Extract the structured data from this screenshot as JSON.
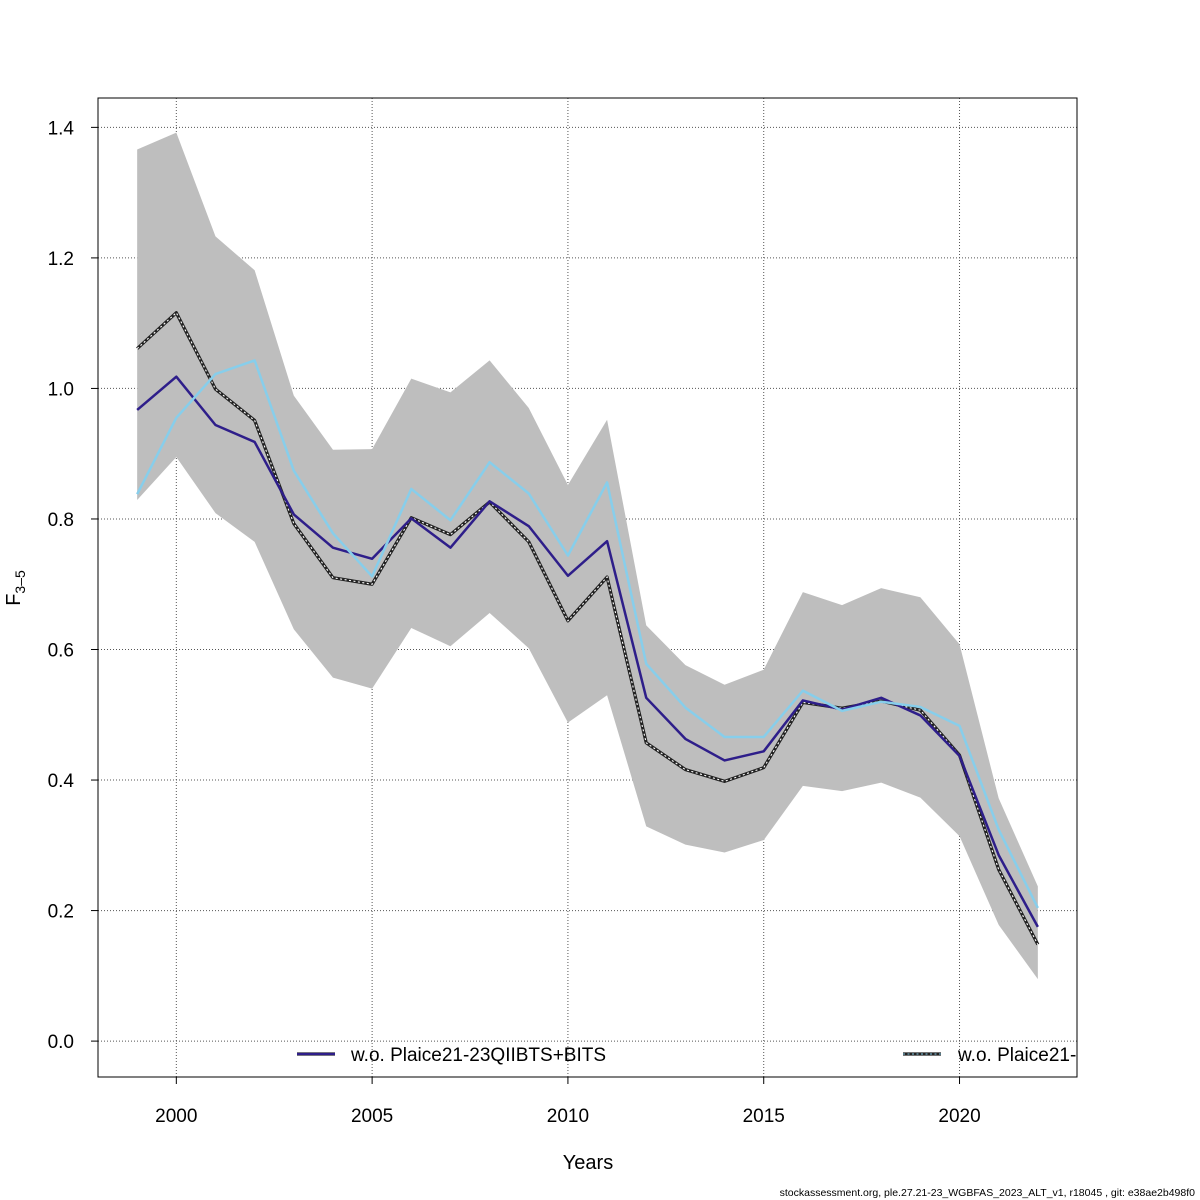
{
  "chart_data": {
    "type": "line",
    "xlabel": "Years",
    "ylabel": "F",
    "ylabel_sub": "3–5",
    "xlim": [
      1998,
      2023
    ],
    "ylim": [
      -0.055,
      1.445
    ],
    "x_ticks": [
      2000,
      2005,
      2010,
      2015,
      2020
    ],
    "y_ticks": [
      0.0,
      0.2,
      0.4,
      0.6,
      0.8,
      1.0,
      1.2,
      1.4
    ],
    "y_tick_labels": [
      "0.0",
      "0.2",
      "0.4",
      "0.6",
      "0.8",
      "1.0",
      "1.2",
      "1.4"
    ],
    "grid": true,
    "x": [
      1999,
      2000,
      2001,
      2002,
      2003,
      2004,
      2005,
      2006,
      2007,
      2008,
      2009,
      2010,
      2011,
      2012,
      2013,
      2014,
      2015,
      2016,
      2017,
      2018,
      2019,
      2020,
      2021,
      2022
    ],
    "band": {
      "upper": [
        1.366,
        1.392,
        1.233,
        1.181,
        0.989,
        0.906,
        0.907,
        1.015,
        0.994,
        1.043,
        0.97,
        0.852,
        0.952,
        0.637,
        0.576,
        0.546,
        0.569,
        0.688,
        0.668,
        0.694,
        0.68,
        0.608,
        0.372,
        0.237
      ],
      "lower": [
        0.829,
        0.895,
        0.809,
        0.765,
        0.631,
        0.557,
        0.54,
        0.633,
        0.605,
        0.656,
        0.602,
        0.488,
        0.53,
        0.329,
        0.301,
        0.289,
        0.308,
        0.391,
        0.383,
        0.396,
        0.373,
        0.314,
        0.178,
        0.095
      ],
      "color": "#bebebe"
    },
    "series": [
      {
        "values": [
          1.061,
          1.116,
          0.999,
          0.951,
          0.793,
          0.71,
          0.7,
          0.802,
          0.776,
          0.826,
          0.765,
          0.644,
          0.711,
          0.457,
          0.416,
          0.398,
          0.419,
          0.519,
          0.51,
          0.521,
          0.507,
          0.438,
          0.263,
          0.148
        ],
        "color": "#222222",
        "dashed": true
      },
      {
        "values": [
          0.967,
          1.018,
          0.944,
          0.918,
          0.807,
          0.756,
          0.739,
          0.801,
          0.756,
          0.827,
          0.789,
          0.713,
          0.766,
          0.526,
          0.463,
          0.43,
          0.444,
          0.522,
          0.508,
          0.526,
          0.499,
          0.437,
          0.285,
          0.175
        ],
        "color": "#2e1e8a",
        "dashed": false
      },
      {
        "values": [
          0.838,
          0.955,
          1.022,
          1.043,
          0.874,
          0.778,
          0.712,
          0.846,
          0.798,
          0.887,
          0.839,
          0.744,
          0.856,
          0.578,
          0.511,
          0.466,
          0.466,
          0.537,
          0.506,
          0.52,
          0.512,
          0.483,
          0.324,
          0.204
        ],
        "color": "#87ceeb",
        "dashed": false
      }
    ],
    "legend": [
      {
        "label": "w.o. Plaice21-23QIIBTS+BITS",
        "color": "#2e1e8a",
        "style": "solid"
      },
      {
        "label": "w.o. Plaice21-",
        "color": "#2e1e8a",
        "style": "dotted"
      }
    ]
  },
  "footer": "stockassessment.org, ple.27.21-23_WGBFAS_2023_ALT_v1, r18045 , git: e38ae2b498f0"
}
